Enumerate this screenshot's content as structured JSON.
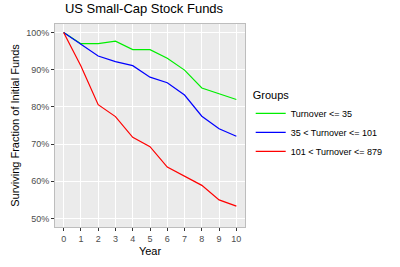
{
  "chart_data": {
    "type": "line",
    "title": "US Small-Cap Stock Funds",
    "x_label": "Year",
    "y_label": "Surviving Fraction of Initial Funds",
    "legend_title": "Groups",
    "x": [
      0,
      1,
      2,
      3,
      4,
      5,
      6,
      7,
      8,
      9,
      10
    ],
    "series": [
      {
        "name": "Turnover <= 35",
        "color": "#00ee00",
        "values": [
          100,
          97,
          97,
          97.7,
          95.4,
          95.4,
          93.1,
          89.9,
          85.1,
          83.5,
          82
        ]
      },
      {
        "name": "35 < Turnover <= 101",
        "color": "#0000ff",
        "values": [
          100,
          96.8,
          93.7,
          92.2,
          91.1,
          88,
          86.5,
          83.2,
          77.5,
          74.1,
          72.1
        ]
      },
      {
        "name": "101 < Turnover <= 879",
        "color": "#ff0000",
        "values": [
          100,
          91,
          80.6,
          77.4,
          71.8,
          69.3,
          63.8,
          61.4,
          58.9,
          55,
          53.3
        ]
      }
    ],
    "xlim": [
      -0.5,
      10.5
    ],
    "xticks": [
      0,
      1,
      2,
      3,
      4,
      5,
      6,
      7,
      8,
      9,
      10
    ],
    "ylim": [
      47.7,
      102.3
    ],
    "yticks": [
      {
        "value": 50,
        "label": "50%"
      },
      {
        "value": 60,
        "label": "60%"
      },
      {
        "value": 70,
        "label": "70%"
      },
      {
        "value": 80,
        "label": "80%"
      },
      {
        "value": 90,
        "label": "90%"
      },
      {
        "value": 100,
        "label": "100%"
      }
    ],
    "grid": true,
    "legend": "right"
  }
}
